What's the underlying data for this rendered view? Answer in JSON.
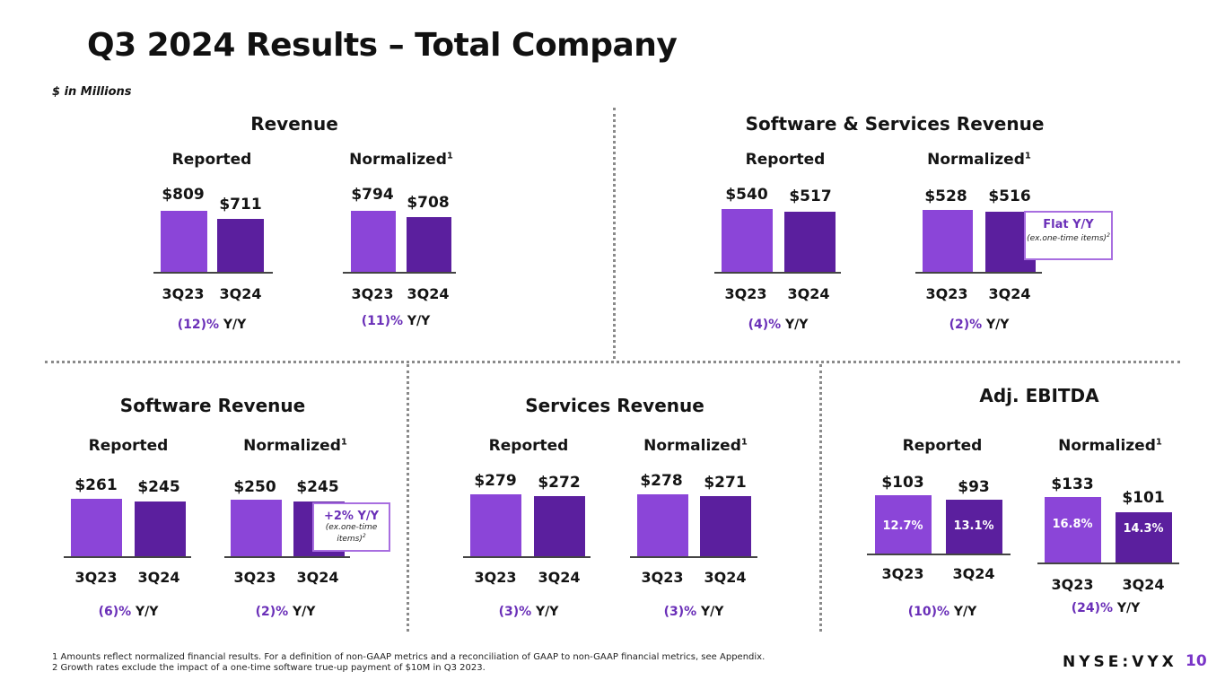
{
  "title": "Q3 2024 Results – Total Company",
  "units": "$ in Millions",
  "sections": {
    "revenue": {
      "title": "Revenue",
      "reported": {
        "label": "Reported",
        "prev_label": "$809",
        "curr_label": "$711",
        "prev_period": "3Q23",
        "curr_period": "3Q24",
        "yoy_pct": "(12)%",
        "yoy_suffix": "Y/Y"
      },
      "normalized": {
        "label": "Normalized",
        "footnote": "1",
        "prev_label": "$794",
        "curr_label": "$708",
        "prev_period": "3Q23",
        "curr_period": "3Q24",
        "yoy_pct": "(11)%",
        "yoy_suffix": "Y/Y"
      }
    },
    "sw_services": {
      "title": "Software & Services Revenue",
      "reported": {
        "label": "Reported",
        "prev_label": "$540",
        "curr_label": "$517",
        "prev_period": "3Q23",
        "curr_period": "3Q24",
        "yoy_pct": "(4)%",
        "yoy_suffix": "Y/Y"
      },
      "normalized": {
        "label": "Normalized",
        "footnote": "1",
        "prev_label": "$528",
        "curr_label": "$516",
        "prev_period": "3Q23",
        "curr_period": "3Q24",
        "yoy_pct": "(2)%",
        "yoy_suffix": "Y/Y",
        "callout": {
          "main": "Flat Y/Y",
          "sub": "(ex.one-time items)",
          "sup": "2"
        }
      }
    },
    "software": {
      "title": "Software Revenue",
      "reported": {
        "label": "Reported",
        "prev_label": "$261",
        "curr_label": "$245",
        "prev_period": "3Q23",
        "curr_period": "3Q24",
        "yoy_pct": "(6)%",
        "yoy_suffix": "Y/Y"
      },
      "normalized": {
        "label": "Normalized",
        "footnote": "1",
        "prev_label": "$250",
        "curr_label": "$245",
        "prev_period": "3Q23",
        "curr_period": "3Q24",
        "yoy_pct": "(2)%",
        "yoy_suffix": "Y/Y",
        "callout": {
          "main": "+2% Y/Y",
          "sub": "(ex.one-time items)",
          "sup": "2"
        }
      }
    },
    "services": {
      "title": "Services Revenue",
      "reported": {
        "label": "Reported",
        "prev_label": "$279",
        "curr_label": "$272",
        "prev_period": "3Q23",
        "curr_period": "3Q24",
        "yoy_pct": "(3)%",
        "yoy_suffix": "Y/Y"
      },
      "normalized": {
        "label": "Normalized",
        "footnote": "1",
        "prev_label": "$278",
        "curr_label": "$271",
        "prev_period": "3Q23",
        "curr_period": "3Q24",
        "yoy_pct": "(3)%",
        "yoy_suffix": "Y/Y"
      }
    },
    "ebitda": {
      "title": "Adj. EBITDA",
      "reported": {
        "label": "Reported",
        "prev_label": "$103",
        "curr_label": "$93",
        "prev_margin": "12.7%",
        "curr_margin": "13.1%",
        "prev_period": "3Q23",
        "curr_period": "3Q24",
        "yoy_pct": "(10)%",
        "yoy_suffix": "Y/Y"
      },
      "normalized": {
        "label": "Normalized",
        "footnote": "1",
        "prev_label": "$133",
        "curr_label": "$101",
        "prev_margin": "16.8%",
        "curr_margin": "14.3%",
        "prev_period": "3Q23",
        "curr_period": "3Q24",
        "yoy_pct": "(24)%",
        "yoy_suffix": "Y/Y"
      }
    }
  },
  "chart_data": [
    {
      "type": "bar",
      "title": "Revenue – Reported",
      "categories": [
        "3Q23",
        "3Q24"
      ],
      "values": [
        809,
        711
      ]
    },
    {
      "type": "bar",
      "title": "Revenue – Normalized",
      "categories": [
        "3Q23",
        "3Q24"
      ],
      "values": [
        794,
        708
      ]
    },
    {
      "type": "bar",
      "title": "Software & Services Revenue – Reported",
      "categories": [
        "3Q23",
        "3Q24"
      ],
      "values": [
        540,
        517
      ]
    },
    {
      "type": "bar",
      "title": "Software & Services Revenue – Normalized",
      "categories": [
        "3Q23",
        "3Q24"
      ],
      "values": [
        528,
        516
      ]
    },
    {
      "type": "bar",
      "title": "Software Revenue – Reported",
      "categories": [
        "3Q23",
        "3Q24"
      ],
      "values": [
        261,
        245
      ]
    },
    {
      "type": "bar",
      "title": "Software Revenue – Normalized",
      "categories": [
        "3Q23",
        "3Q24"
      ],
      "values": [
        250,
        245
      ]
    },
    {
      "type": "bar",
      "title": "Services Revenue – Reported",
      "categories": [
        "3Q23",
        "3Q24"
      ],
      "values": [
        279,
        272
      ]
    },
    {
      "type": "bar",
      "title": "Services Revenue – Normalized",
      "categories": [
        "3Q23",
        "3Q24"
      ],
      "values": [
        278,
        271
      ]
    },
    {
      "type": "bar",
      "title": "Adj. EBITDA – Reported",
      "categories": [
        "3Q23",
        "3Q24"
      ],
      "values": [
        103,
        93
      ],
      "margins": [
        12.7,
        13.1
      ]
    },
    {
      "type": "bar",
      "title": "Adj. EBITDA – Normalized",
      "categories": [
        "3Q23",
        "3Q24"
      ],
      "values": [
        133,
        101
      ],
      "margins": [
        16.8,
        14.3
      ]
    }
  ],
  "footnotes": [
    "1 Amounts reflect normalized financial results. For a definition of non-GAAP metrics and a reconciliation of GAAP to non-GAAP financial metrics, see Appendix.",
    "2 Growth rates exclude the impact of a one-time software true-up payment of $10M in Q3 2023."
  ],
  "ticker": "NYSE:VYX",
  "page_number": "10",
  "colors": {
    "prev_bar": "#8b45d8",
    "curr_bar": "#5b1f9e",
    "accent": "#6a2fb8",
    "callout_border": "#a86ee0"
  }
}
